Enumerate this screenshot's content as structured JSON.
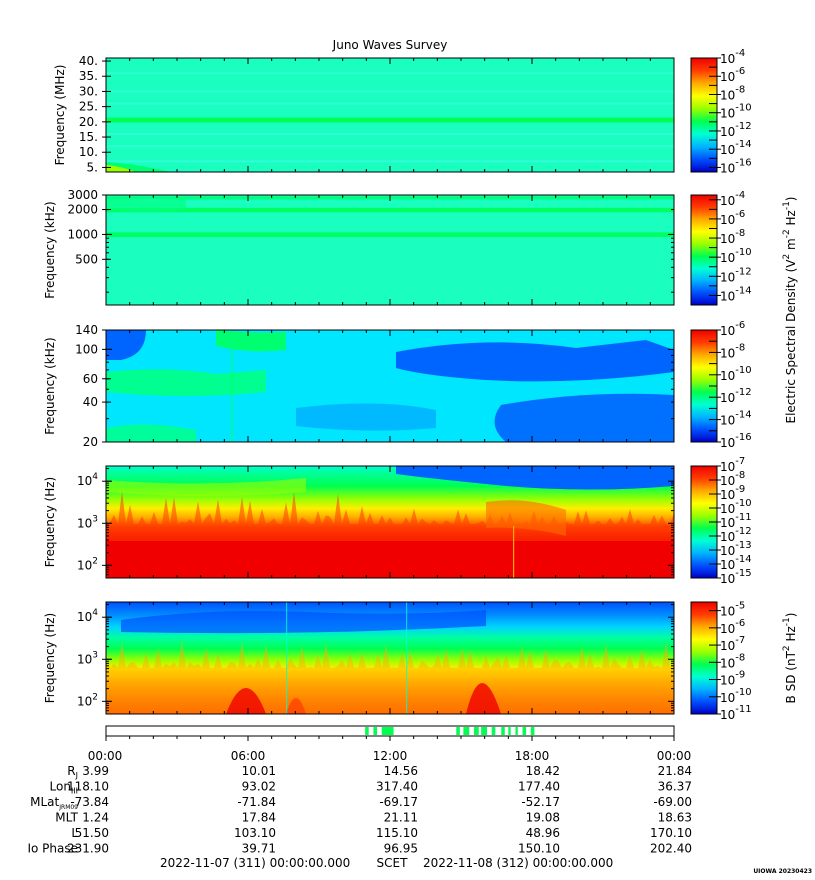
{
  "title": "Juno Waves Survey",
  "credit": "UIOWA 20230423",
  "colorscale": [
    "#0000c8",
    "#0050ff",
    "#00b4ff",
    "#00ffd2",
    "#00ff50",
    "#9bff00",
    "#ffff00",
    "#ffaa00",
    "#ff3c00",
    "#f00000"
  ],
  "colorbar_side_labels": [
    {
      "text": "Electric Spectral Density (V",
      "sup": "2",
      "mid": " m",
      "sup2": "-2",
      "end": " Hz",
      "sup3": "-1",
      "close": ")"
    },
    {
      "text": "B SD (nT",
      "sup": "2",
      "mid": " Hz",
      "sup2": "-1",
      "close": ")"
    }
  ],
  "chart_data": [
    {
      "type": "heatmap",
      "panel": "hfr-high",
      "ylabel": "Frequency (MHz)",
      "yscale": "linear",
      "ylim": [
        3.5,
        41
      ],
      "yticks": [
        {
          "v": 40,
          "label": "40."
        },
        {
          "v": 35,
          "label": "35."
        },
        {
          "v": 30,
          "label": "30."
        },
        {
          "v": 25,
          "label": "25."
        },
        {
          "v": 20,
          "label": "20."
        },
        {
          "v": 15,
          "label": "15."
        },
        {
          "v": 10,
          "label": "10."
        },
        {
          "v": 5,
          "label": "5."
        }
      ],
      "colorbar": {
        "min_exp": -16.5,
        "max_exp": -4,
        "labels": [
          -4,
          -6,
          -8,
          -10,
          -12,
          -14,
          -16
        ]
      }
    },
    {
      "type": "heatmap",
      "panel": "hfr-low",
      "ylabel": "Frequency (kHz)",
      "yscale": "log",
      "ylim": [
        140,
        3000
      ],
      "yticks": [
        {
          "v": 3000,
          "label": "3000"
        },
        {
          "v": 2000,
          "label": "2000"
        },
        {
          "v": 1000,
          "label": "1000"
        },
        {
          "v": 500,
          "label": "500"
        }
      ],
      "colorbar": {
        "min_exp": -15,
        "max_exp": -3.5,
        "labels": [
          -4,
          -6,
          -8,
          -10,
          -12,
          -14
        ]
      }
    },
    {
      "type": "heatmap",
      "panel": "lfr-high",
      "ylabel": "Frequency (kHz)",
      "yscale": "log",
      "ylim": [
        20,
        140
      ],
      "yticks": [
        {
          "v": 140,
          "label": "140"
        },
        {
          "v": 100,
          "label": "100"
        },
        {
          "v": 60,
          "label": "60"
        },
        {
          "v": 40,
          "label": "40"
        },
        {
          "v": 20,
          "label": "20"
        }
      ],
      "colorbar": {
        "min_exp": -16,
        "max_exp": -6,
        "labels": [
          -6,
          -8,
          -10,
          -12,
          -14,
          -16
        ]
      }
    },
    {
      "type": "heatmap",
      "panel": "lfr-low-e",
      "ylabel": "Frequency (Hz)",
      "yscale": "log",
      "ylim": [
        50,
        23000
      ],
      "yticks": [
        {
          "v": 10000,
          "label": "10",
          "exp": "4"
        },
        {
          "v": 1000,
          "label": "10",
          "exp": "3"
        },
        {
          "v": 100,
          "label": "10",
          "exp": "2"
        }
      ],
      "colorbar": {
        "min_exp": -15,
        "max_exp": -7,
        "labels": [
          -7,
          -8,
          -9,
          -10,
          -11,
          -12,
          -13,
          -14,
          -15
        ]
      }
    },
    {
      "type": "heatmap",
      "panel": "lfr-low-b",
      "ylabel": "Frequency (Hz)",
      "yscale": "log",
      "ylim": [
        50,
        23000
      ],
      "yticks": [
        {
          "v": 10000,
          "label": "10",
          "exp": "4"
        },
        {
          "v": 1000,
          "label": "10",
          "exp": "3"
        },
        {
          "v": 100,
          "label": "10",
          "exp": "2"
        }
      ],
      "colorbar": {
        "min_exp": -11,
        "max_exp": -4.5,
        "labels": [
          -5,
          -6,
          -7,
          -8,
          -9,
          -10,
          -11
        ]
      }
    }
  ],
  "mode_bar": {
    "segments_hours": [
      [
        10.95,
        11.1
      ],
      [
        11.3,
        11.45
      ],
      [
        11.65,
        12.15
      ],
      [
        14.8,
        14.95
      ],
      [
        15.1,
        15.35
      ],
      [
        15.55,
        15.75
      ],
      [
        15.85,
        16.1
      ],
      [
        16.3,
        16.45
      ],
      [
        16.7,
        16.85
      ],
      [
        17.0,
        17.1
      ],
      [
        17.3,
        17.4
      ],
      [
        17.6,
        17.75
      ],
      [
        17.95,
        18.1
      ]
    ]
  },
  "ephemeris": {
    "time_labels": [
      "00:00",
      "06:00",
      "12:00",
      "18:00",
      "00:00"
    ],
    "rows": [
      {
        "label": "R",
        "sub": "J",
        "values": [
          "3.99",
          "10.01",
          "14.56",
          "18.42",
          "21.84"
        ]
      },
      {
        "label": "Lon",
        "sub": "III",
        "values": [
          "118.10",
          "93.02",
          "317.40",
          "177.40",
          "36.37"
        ]
      },
      {
        "label": "MLat",
        "sub": "JRM09",
        "values": [
          "-73.84",
          "-71.84",
          "-69.17",
          "-52.17",
          "-69.00"
        ]
      },
      {
        "label": "MLT",
        "sub": "",
        "values": [
          "1.24",
          "17.84",
          "21.11",
          "19.08",
          "18.63"
        ]
      },
      {
        "label": "L",
        "sub": "",
        "values": [
          "51.50",
          "103.10",
          "115.10",
          "48.96",
          "170.10"
        ]
      },
      {
        "label": "Io Phase",
        "sub": "",
        "values": [
          "231.90",
          "39.71",
          "96.95",
          "150.10",
          "202.40"
        ]
      }
    ],
    "start": "2022-11-07 (311) 00:00:00.000",
    "scet": "SCET",
    "end": "2022-11-08 (312) 00:00:00.000"
  }
}
